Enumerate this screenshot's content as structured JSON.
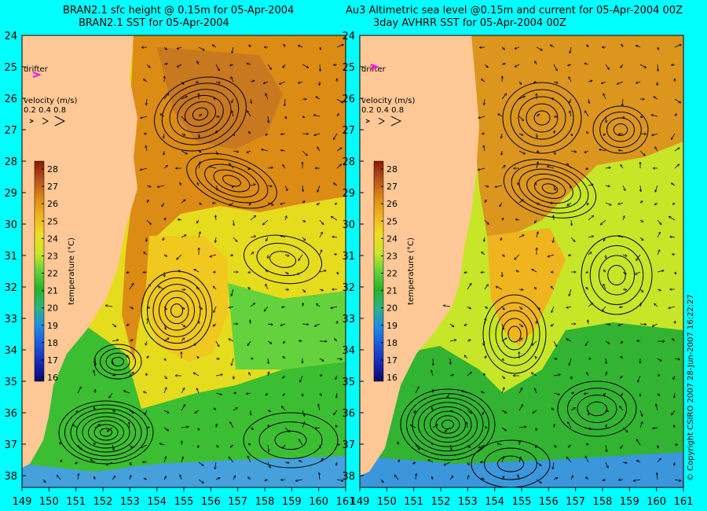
{
  "left_panel": {
    "title_line1": "BRAN2.1 sfc height @ 0.15m for 05-Apr-2004",
    "title_line2": "BRAN2.1 SST for 05-Apr-2004"
  },
  "right_panel": {
    "title_line1": "Au3 Altimetric sea level  @0.15m and current for 05-Apr-2004 00Z",
    "title_line2": "3day AVHRR SST for 05-Apr-2004 00Z"
  },
  "y_ticks": [
    "24",
    "25",
    "26",
    "27",
    "28",
    "29",
    "30",
    "31",
    "32",
    "33",
    "34",
    "35",
    "36",
    "37",
    "38"
  ],
  "x_ticks_left": [
    "149",
    "150",
    "151",
    "152",
    "153",
    "154",
    "155",
    "156",
    "157",
    "158",
    "159",
    "160",
    "161"
  ],
  "x_ticks_right": [
    "149",
    "150",
    "151",
    "152",
    "153",
    "154",
    "155",
    "156",
    "157",
    "158",
    "159",
    "160",
    "161"
  ],
  "drifter_label": "drifter",
  "velocity": {
    "label": "velocity (m/s)",
    "scale": "0.2 0.4 0.8"
  },
  "colorbar": {
    "label": "temperature (°C)",
    "ticks": [
      "28",
      "27",
      "26",
      "25",
      "24",
      "23",
      "22",
      "21",
      "20",
      "19",
      "18",
      "17",
      "16"
    ]
  },
  "copyright": "© Copyright CSIRO 2007   28-Jun-2007 16:22:27",
  "colors": {
    "background": "#00ffff",
    "land": "#ffc896",
    "warm": "#dc8c14",
    "mid": "#e6dc1e",
    "cool": "#28b428",
    "cold": "#1e8ce6"
  }
}
